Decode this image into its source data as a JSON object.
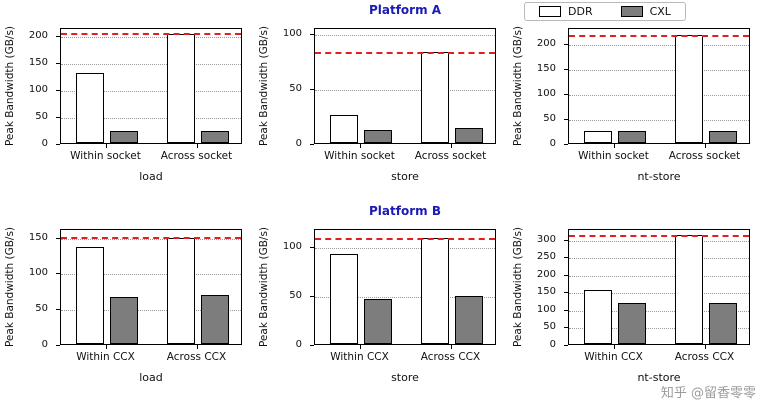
{
  "figure": {
    "legend": {
      "items": [
        {
          "label": "DDR",
          "color": "#ffffff"
        },
        {
          "label": "CXL",
          "color": "#7d7d7d"
        }
      ]
    },
    "watermark": "知乎 @留香零零",
    "colors": {
      "ref_line": "#e02020",
      "title": "#1a1ab5",
      "grid": "#9a9a9a",
      "bar_edge": "#000000"
    }
  },
  "chart_data": [
    {
      "type": "bar",
      "row": 0,
      "col": 0,
      "title": "",
      "xlabel": "load",
      "ylabel": "Peak Bandwidth (GB/s)",
      "categories": [
        "Within socket",
        "Across socket"
      ],
      "series": [
        {
          "name": "DDR",
          "values": [
            130,
            202
          ]
        },
        {
          "name": "CXL",
          "values": [
            22,
            22
          ]
        }
      ],
      "ylim": [
        0,
        215
      ],
      "yticks": [
        0,
        50,
        100,
        150,
        200
      ],
      "ref_line": 207,
      "grid": true,
      "legend_position": "none"
    },
    {
      "type": "bar",
      "row": 0,
      "col": 1,
      "title": "Platform A",
      "xlabel": "store",
      "ylabel": "Peak Bandwidth (GB/s)",
      "categories": [
        "Within socket",
        "Across socket"
      ],
      "series": [
        {
          "name": "DDR",
          "values": [
            25,
            82
          ]
        },
        {
          "name": "CXL",
          "values": [
            12,
            14
          ]
        }
      ],
      "ylim": [
        0,
        105
      ],
      "yticks": [
        0,
        50,
        100
      ],
      "ref_line": 84,
      "grid": true,
      "legend_position": "none"
    },
    {
      "type": "bar",
      "row": 0,
      "col": 2,
      "title": "",
      "xlabel": "nt-store",
      "ylabel": "Peak Bandwidth (GB/s)",
      "categories": [
        "Within socket",
        "Across socket"
      ],
      "series": [
        {
          "name": "DDR",
          "values": [
            23,
            215
          ]
        },
        {
          "name": "CXL",
          "values": [
            23,
            23
          ]
        }
      ],
      "ylim": [
        0,
        232
      ],
      "yticks": [
        0,
        50,
        100,
        150,
        200
      ],
      "ref_line": 221,
      "grid": true,
      "legend_position": "top-right"
    },
    {
      "type": "bar",
      "row": 1,
      "col": 0,
      "title": "",
      "xlabel": "load",
      "ylabel": "Peak Bandwidth (GB/s)",
      "categories": [
        "Within CCX",
        "Across CCX"
      ],
      "series": [
        {
          "name": "DDR",
          "values": [
            135,
            148
          ]
        },
        {
          "name": "CXL",
          "values": [
            65,
            68
          ]
        }
      ],
      "ylim": [
        0,
        162
      ],
      "yticks": [
        0,
        50,
        100,
        150
      ],
      "ref_line": 152,
      "grid": true,
      "legend_position": "none"
    },
    {
      "type": "bar",
      "row": 1,
      "col": 1,
      "title": "Platform B",
      "xlabel": "store",
      "ylabel": "Peak Bandwidth (GB/s)",
      "categories": [
        "Within CCX",
        "Across CCX"
      ],
      "series": [
        {
          "name": "DDR",
          "values": [
            92,
            108
          ]
        },
        {
          "name": "CXL",
          "values": [
            46,
            49
          ]
        }
      ],
      "ylim": [
        0,
        118
      ],
      "yticks": [
        0,
        50,
        100
      ],
      "ref_line": 110,
      "grid": true,
      "legend_position": "none"
    },
    {
      "type": "bar",
      "row": 1,
      "col": 2,
      "title": "",
      "xlabel": "nt-store",
      "ylabel": "Peak Bandwidth (GB/s)",
      "categories": [
        "Within CCX",
        "Across CCX"
      ],
      "series": [
        {
          "name": "DDR",
          "values": [
            153,
            310
          ]
        },
        {
          "name": "CXL",
          "values": [
            118,
            118
          ]
        }
      ],
      "ylim": [
        0,
        330
      ],
      "yticks": [
        0,
        50,
        100,
        150,
        200,
        250,
        300
      ],
      "ref_line": 316,
      "grid": true,
      "legend_position": "none"
    }
  ]
}
